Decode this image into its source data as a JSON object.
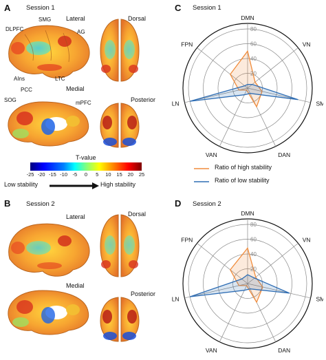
{
  "panels": {
    "a": {
      "letter": "A",
      "session": "Session 1"
    },
    "b": {
      "letter": "B",
      "session": "Session 2"
    },
    "c": {
      "letter": "C",
      "session": "Session 1"
    },
    "d": {
      "letter": "D",
      "session": "Session 2"
    }
  },
  "views": {
    "lateral": "Lateral",
    "dorsal": "Dorsal",
    "medial": "Medial",
    "posterior": "Posterior"
  },
  "regions": {
    "dlpfc": "DLPFC",
    "smg": "SMG",
    "ag": "AG",
    "ains": "AIns",
    "ltc": "LTC",
    "pcc": "PCC",
    "sog": "SOG",
    "mpfc": "mPFC"
  },
  "colorbar": {
    "title": "T-value",
    "ticks": [
      "-25",
      "-20",
      "-15",
      "-10",
      "-5",
      "0",
      "5",
      "10",
      "15",
      "20",
      "25"
    ],
    "low_label": "Low stability",
    "high_label": "High stability",
    "colors": [
      "#00007f",
      "#0000ff",
      "#0080ff",
      "#00ffff",
      "#80ff80",
      "#ffff00",
      "#ff8000",
      "#ff0000",
      "#7f0000"
    ]
  },
  "legend": {
    "high": "Ratio of high stability",
    "low": "Ratio of low stability",
    "high_color": "#f08c3c",
    "low_color": "#2e6db4"
  },
  "chart_data": [
    {
      "type": "radar",
      "title": "Session 1",
      "axes": [
        "DMN",
        "VN",
        "SMN",
        "DAN",
        "VAN",
        "LN",
        "FPN"
      ],
      "rlim": [
        0,
        80
      ],
      "rings": [
        20,
        40,
        60,
        80
      ],
      "series": [
        {
          "name": "Ratio of high stability",
          "values": [
            50,
            13,
            20,
            28,
            3,
            12,
            30
          ]
        },
        {
          "name": "Ratio of low stability",
          "values": [
            5,
            8,
            70,
            8,
            10,
            80,
            5
          ]
        }
      ]
    },
    {
      "type": "radar",
      "title": "Session 2",
      "axes": [
        "DMN",
        "VN",
        "SMN",
        "DAN",
        "VAN",
        "LN",
        "FPN"
      ],
      "rlim": [
        0,
        80
      ],
      "rings": [
        20,
        40,
        60,
        80
      ],
      "series": [
        {
          "name": "Ratio of high stability",
          "values": [
            48,
            14,
            21,
            28,
            3,
            12,
            30
          ]
        },
        {
          "name": "Ratio of low stability",
          "values": [
            12,
            12,
            58,
            8,
            10,
            80,
            10
          ]
        }
      ]
    }
  ]
}
